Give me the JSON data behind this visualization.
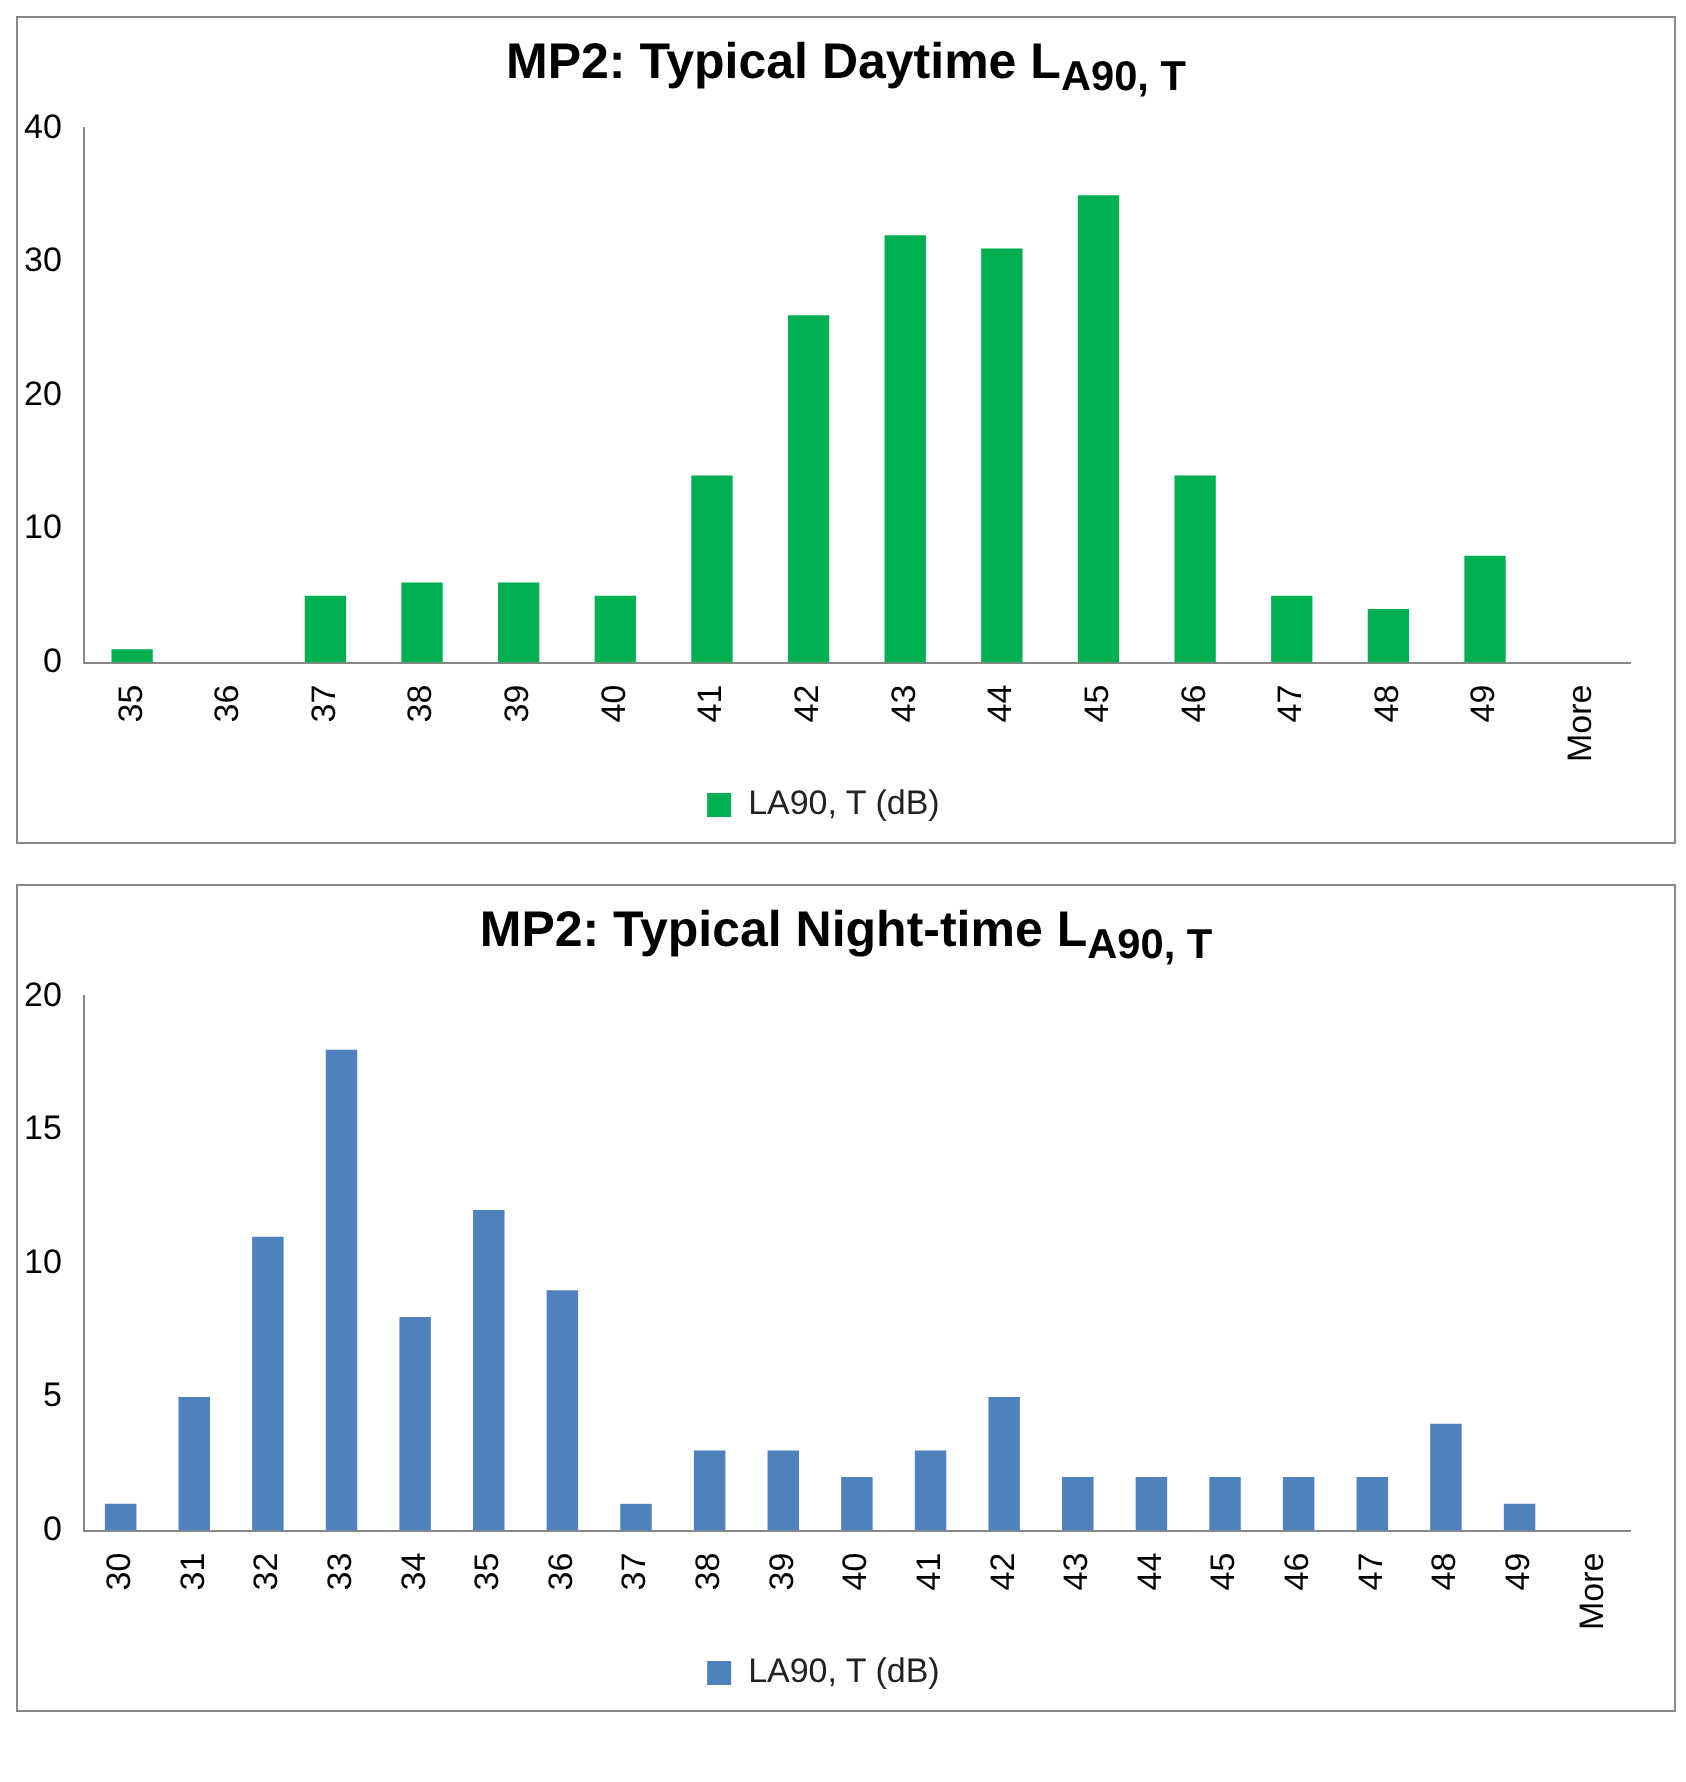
{
  "chart_data": [
    {
      "type": "bar",
      "title": "MP2: Typical Daytime L$_{A90, T}$",
      "categories": [
        "35",
        "36",
        "37",
        "38",
        "39",
        "40",
        "41",
        "42",
        "43",
        "44",
        "45",
        "46",
        "47",
        "48",
        "49",
        "More"
      ],
      "series": [
        {
          "name": "LA90, T (dB)",
          "color": "#00b050",
          "values": [
            1,
            0,
            5,
            6,
            6,
            5,
            14,
            26,
            32,
            31,
            35,
            14,
            5,
            4,
            8,
            0
          ]
        }
      ],
      "ylim": [
        0,
        40
      ],
      "yticks": [
        0,
        10,
        20,
        30,
        40
      ],
      "grid": false,
      "legend": "bottom"
    },
    {
      "type": "bar",
      "title": "MP2: Typical Night-time L$_{A90, T}$",
      "categories": [
        "30",
        "31",
        "32",
        "33",
        "34",
        "35",
        "36",
        "37",
        "38",
        "39",
        "40",
        "41",
        "42",
        "43",
        "44",
        "45",
        "46",
        "47",
        "48",
        "49",
        "More"
      ],
      "series": [
        {
          "name": "LA90, T (dB)",
          "color": "#4f81bd",
          "values": [
            1,
            5,
            11,
            18,
            8,
            12,
            9,
            1,
            3,
            3,
            2,
            3,
            5,
            2,
            2,
            2,
            2,
            2,
            4,
            1,
            0
          ]
        }
      ],
      "ylim": [
        0,
        20
      ],
      "yticks": [
        0,
        5,
        10,
        15,
        20
      ],
      "grid": false,
      "legend": "bottom"
    }
  ]
}
